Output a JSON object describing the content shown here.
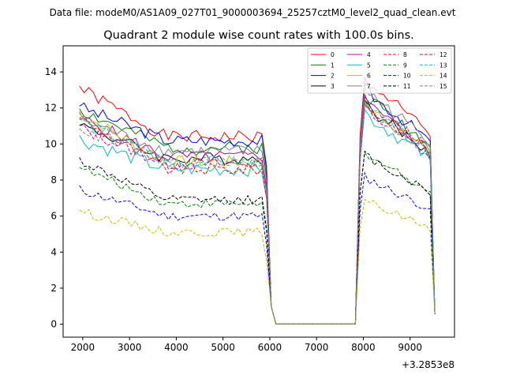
{
  "chart_data": {
    "type": "line",
    "suptitle": "Data file: modeM0/AS1A09_027T01_9000003694_25257cztM0_level2_quad_clean.evt",
    "title": "Quadrant 2 module wise count rates with 100.0s bins.",
    "xlabel": "",
    "ylabel": "",
    "x_offset_label": "+3.2853e8",
    "xlim": [
      1580,
      9950
    ],
    "ylim": [
      -0.72,
      15.45
    ],
    "xticks": [
      2000,
      3000,
      4000,
      5000,
      6000,
      7000,
      8000,
      9000
    ],
    "yticks": [
      0,
      2,
      4,
      6,
      8,
      10,
      12,
      14
    ],
    "xtick_labels": [
      "2000",
      "3000",
      "4000",
      "5000",
      "6000",
      "7000",
      "8000",
      "9000"
    ],
    "ytick_labels": [
      "0",
      "2",
      "4",
      "6",
      "8",
      "10",
      "12",
      "14"
    ],
    "legend": {
      "placement": "top-right",
      "columns": 4
    },
    "x": {
      "start": 1930,
      "end": 9530,
      "step": 100
    },
    "series": [
      {
        "name": "0",
        "color": "#ff0000",
        "dash": "solid",
        "level1": 10.4,
        "level2": 12.3,
        "first": 13.2,
        "wiggle": 0.35,
        "seed": 1
      },
      {
        "name": "1",
        "color": "#008000",
        "dash": "solid",
        "level1": 9.8,
        "level2": 11.5,
        "first": 12.0,
        "wiggle": 0.35,
        "seed": 2
      },
      {
        "name": "2",
        "color": "#0000ff",
        "dash": "solid",
        "level1": 10.2,
        "level2": 11.8,
        "first": 12.2,
        "wiggle": 0.35,
        "seed": 3
      },
      {
        "name": "3",
        "color": "#000000",
        "dash": "solid",
        "level1": 9.2,
        "level2": 11.0,
        "first": 11.2,
        "wiggle": 0.35,
        "seed": 4
      },
      {
        "name": "4",
        "color": "#bf00bf",
        "dash": "solid",
        "level1": 9.3,
        "level2": 11.2,
        "first": 11.6,
        "wiggle": 0.35,
        "seed": 5
      },
      {
        "name": "5",
        "color": "#00bfbf",
        "dash": "solid",
        "level1": 8.6,
        "level2": 10.6,
        "first": 10.4,
        "wiggle": 0.4,
        "seed": 6
      },
      {
        "name": "6",
        "color": "#bfbf00",
        "dash": "solid",
        "level1": 9.0,
        "level2": 11.0,
        "first": 11.8,
        "wiggle": 0.35,
        "seed": 7
      },
      {
        "name": "7",
        "color": "#808080",
        "dash": "solid",
        "level1": 9.6,
        "level2": 11.8,
        "first": 11.5,
        "wiggle": 0.35,
        "seed": 8
      },
      {
        "name": "8",
        "color": "#ff0000",
        "dash": "dashed",
        "level1": 8.6,
        "level2": 11.2,
        "first": 11.5,
        "wiggle": 0.35,
        "seed": 9
      },
      {
        "name": "9",
        "color": "#008000",
        "dash": "dashed",
        "level1": 6.7,
        "level2": 8.6,
        "first": 8.8,
        "wiggle": 0.25,
        "seed": 10
      },
      {
        "name": "10",
        "color": "#0000ff",
        "dash": "dashed",
        "level1": 6.0,
        "level2": 7.4,
        "first": 7.6,
        "wiggle": 0.25,
        "seed": 11
      },
      {
        "name": "11",
        "color": "#000000",
        "dash": "dashed",
        "level1": 6.9,
        "level2": 8.5,
        "first": 9.2,
        "wiggle": 0.25,
        "seed": 12
      },
      {
        "name": "12",
        "color": "#bf00bf",
        "dash": "dashed",
        "level1": 8.9,
        "level2": 10.8,
        "first": 11.0,
        "wiggle": 0.35,
        "seed": 13
      },
      {
        "name": "13",
        "color": "#00bfbf",
        "dash": "dashed",
        "level1": 9.0,
        "level2": 11.0,
        "first": 11.4,
        "wiggle": 0.35,
        "seed": 14
      },
      {
        "name": "14",
        "color": "#bfbf00",
        "dash": "dashed",
        "level1": 5.1,
        "level2": 6.2,
        "first": 6.4,
        "wiggle": 0.25,
        "seed": 15
      },
      {
        "name": "15",
        "color": "#808080",
        "dash": "dashed",
        "level1": 9.0,
        "level2": 11.0,
        "first": 11.0,
        "wiggle": 0.35,
        "seed": 16
      }
    ]
  }
}
